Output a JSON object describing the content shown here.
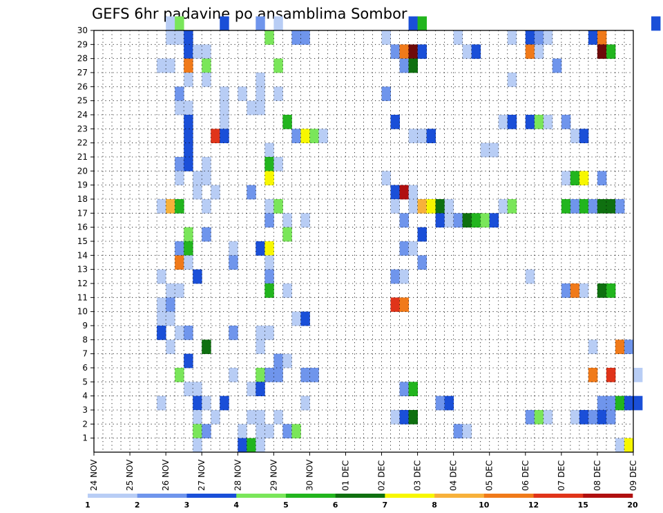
{
  "chart_data": {
    "type": "heatmap",
    "title": "GEFS 6hr padavine po ansamblima Sombor",
    "xlabel": "",
    "ylabel": "",
    "x_tick_labels": [
      "24 NOV",
      "25 NOV",
      "26 NOV",
      "27 NOV",
      "28 NOV",
      "29 NOV",
      "30 NOV",
      "01 DEC",
      "02 DEC",
      "03 DEC",
      "04 DEC",
      "05 DEC",
      "06 DEC",
      "07 DEC",
      "08 DEC",
      "09 DEC"
    ],
    "x_steps_per_day": 4,
    "y_tick_labels": [
      "1",
      "2",
      "3",
      "4",
      "5",
      "6",
      "7",
      "8",
      "9",
      "10",
      "11",
      "12",
      "13",
      "14",
      "15",
      "16",
      "17",
      "18",
      "19",
      "20",
      "21",
      "22",
      "23",
      "24",
      "25",
      "26",
      "27",
      "28",
      "29",
      "30"
    ],
    "ylim": [
      0,
      30
    ],
    "grid": true,
    "colorbar": {
      "tick_labels": [
        "1",
        "2",
        "3",
        "4",
        "5",
        "6",
        "7",
        "8",
        "10",
        "12",
        "15",
        "20"
      ],
      "boundaries": [
        1,
        2,
        3,
        4,
        5,
        6,
        7,
        8,
        10,
        12,
        15,
        20
      ],
      "colors": [
        "#b8cdf5",
        "#6f95ec",
        "#1a4fd8",
        "#7ae65a",
        "#22b51e",
        "#0f7010",
        "#f7f700",
        "#f7b13a",
        "#f07a1a",
        "#e0341a",
        "#b01010",
        "#6e0a0a"
      ]
    },
    "cells": [
      [
        8,
        30,
        0
      ],
      [
        9,
        30,
        3
      ],
      [
        14,
        30,
        2
      ],
      [
        18,
        30,
        1
      ],
      [
        20,
        30,
        0
      ],
      [
        35,
        30,
        2
      ],
      [
        36,
        30,
        4
      ],
      [
        62,
        30,
        2
      ],
      [
        8,
        29,
        0
      ],
      [
        9,
        29,
        0
      ],
      [
        10,
        29,
        2
      ],
      [
        19,
        29,
        3
      ],
      [
        22,
        29,
        1
      ],
      [
        23,
        29,
        1
      ],
      [
        32,
        29,
        0
      ],
      [
        40,
        29,
        0
      ],
      [
        46,
        29,
        0
      ],
      [
        48,
        29,
        2
      ],
      [
        49,
        29,
        1
      ],
      [
        50,
        29,
        0
      ],
      [
        55,
        29,
        2
      ],
      [
        56,
        29,
        8
      ],
      [
        10,
        28,
        2
      ],
      [
        11,
        28,
        0
      ],
      [
        12,
        28,
        0
      ],
      [
        33,
        28,
        1
      ],
      [
        34,
        28,
        8
      ],
      [
        35,
        28,
        11
      ],
      [
        36,
        28,
        2
      ],
      [
        41,
        28,
        0
      ],
      [
        42,
        28,
        2
      ],
      [
        48,
        28,
        8
      ],
      [
        49,
        28,
        0
      ],
      [
        56,
        28,
        11
      ],
      [
        57,
        28,
        4
      ],
      [
        7,
        27,
        0
      ],
      [
        8,
        27,
        0
      ],
      [
        10,
        27,
        8
      ],
      [
        12,
        27,
        3
      ],
      [
        20,
        27,
        3
      ],
      [
        34,
        27,
        1
      ],
      [
        35,
        27,
        5
      ],
      [
        51,
        27,
        1
      ],
      [
        10,
        26,
        0
      ],
      [
        12,
        26,
        0
      ],
      [
        18,
        26,
        0
      ],
      [
        46,
        26,
        0
      ],
      [
        9,
        25,
        1
      ],
      [
        14,
        25,
        0
      ],
      [
        16,
        25,
        0
      ],
      [
        18,
        25,
        0
      ],
      [
        20,
        25,
        0
      ],
      [
        32,
        25,
        1
      ],
      [
        9,
        24,
        0
      ],
      [
        10,
        24,
        0
      ],
      [
        14,
        24,
        0
      ],
      [
        17,
        24,
        0
      ],
      [
        18,
        24,
        0
      ],
      [
        10,
        23,
        2
      ],
      [
        14,
        23,
        0
      ],
      [
        21,
        23,
        4
      ],
      [
        33,
        23,
        2
      ],
      [
        45,
        23,
        0
      ],
      [
        46,
        23,
        2
      ],
      [
        48,
        23,
        2
      ],
      [
        49,
        23,
        3
      ],
      [
        50,
        23,
        0
      ],
      [
        52,
        23,
        1
      ],
      [
        10,
        22,
        2
      ],
      [
        13,
        22,
        9
      ],
      [
        14,
        22,
        2
      ],
      [
        22,
        22,
        1
      ],
      [
        23,
        22,
        6
      ],
      [
        24,
        22,
        3
      ],
      [
        25,
        22,
        0
      ],
      [
        35,
        22,
        0
      ],
      [
        36,
        22,
        0
      ],
      [
        37,
        22,
        2
      ],
      [
        53,
        22,
        0
      ],
      [
        54,
        22,
        2
      ],
      [
        10,
        21,
        2
      ],
      [
        19,
        21,
        0
      ],
      [
        43,
        21,
        0
      ],
      [
        44,
        21,
        0
      ],
      [
        9,
        20,
        1
      ],
      [
        10,
        20,
        2
      ],
      [
        12,
        20,
        0
      ],
      [
        19,
        20,
        4
      ],
      [
        20,
        20,
        0
      ],
      [
        9,
        19,
        0
      ],
      [
        11,
        19,
        0
      ],
      [
        12,
        19,
        0
      ],
      [
        19,
        19,
        6
      ],
      [
        32,
        19,
        0
      ],
      [
        52,
        19,
        0
      ],
      [
        53,
        19,
        4
      ],
      [
        54,
        19,
        6
      ],
      [
        56,
        19,
        1
      ],
      [
        11,
        18,
        0
      ],
      [
        13,
        18,
        0
      ],
      [
        17,
        18,
        1
      ],
      [
        33,
        18,
        2
      ],
      [
        34,
        18,
        10
      ],
      [
        35,
        18,
        0
      ],
      [
        7,
        17,
        0
      ],
      [
        8,
        17,
        7
      ],
      [
        9,
        17,
        4
      ],
      [
        12,
        17,
        0
      ],
      [
        19,
        17,
        0
      ],
      [
        20,
        17,
        3
      ],
      [
        33,
        17,
        0
      ],
      [
        35,
        17,
        0
      ],
      [
        36,
        17,
        7
      ],
      [
        37,
        17,
        6
      ],
      [
        38,
        17,
        5
      ],
      [
        39,
        17,
        0
      ],
      [
        45,
        17,
        0
      ],
      [
        46,
        17,
        3
      ],
      [
        52,
        17,
        4
      ],
      [
        53,
        17,
        1
      ],
      [
        54,
        17,
        4
      ],
      [
        55,
        17,
        1
      ],
      [
        56,
        17,
        5
      ],
      [
        57,
        17,
        5
      ],
      [
        58,
        17,
        1
      ],
      [
        19,
        16,
        1
      ],
      [
        21,
        16,
        0
      ],
      [
        23,
        16,
        0
      ],
      [
        34,
        16,
        1
      ],
      [
        38,
        16,
        2
      ],
      [
        39,
        16,
        0
      ],
      [
        40,
        16,
        1
      ],
      [
        41,
        16,
        5
      ],
      [
        42,
        16,
        4
      ],
      [
        43,
        16,
        3
      ],
      [
        44,
        16,
        2
      ],
      [
        10,
        15,
        3
      ],
      [
        12,
        15,
        1
      ],
      [
        21,
        15,
        3
      ],
      [
        36,
        15,
        2
      ],
      [
        9,
        14,
        1
      ],
      [
        10,
        14,
        4
      ],
      [
        15,
        14,
        0
      ],
      [
        18,
        14,
        2
      ],
      [
        19,
        14,
        6
      ],
      [
        34,
        14,
        1
      ],
      [
        35,
        14,
        0
      ],
      [
        9,
        13,
        8
      ],
      [
        10,
        13,
        0
      ],
      [
        15,
        13,
        1
      ],
      [
        19,
        13,
        0
      ],
      [
        36,
        13,
        1
      ],
      [
        7,
        12,
        0
      ],
      [
        11,
        12,
        2
      ],
      [
        19,
        12,
        1
      ],
      [
        33,
        12,
        1
      ],
      [
        34,
        12,
        0
      ],
      [
        48,
        12,
        0
      ],
      [
        8,
        11,
        0
      ],
      [
        9,
        11,
        0
      ],
      [
        19,
        11,
        4
      ],
      [
        21,
        11,
        0
      ],
      [
        52,
        11,
        1
      ],
      [
        53,
        11,
        8
      ],
      [
        54,
        11,
        0
      ],
      [
        56,
        11,
        5
      ],
      [
        57,
        11,
        4
      ],
      [
        7,
        10,
        0
      ],
      [
        8,
        10,
        1
      ],
      [
        33,
        10,
        9
      ],
      [
        34,
        10,
        8
      ],
      [
        7,
        9,
        0
      ],
      [
        8,
        9,
        0
      ],
      [
        22,
        9,
        0
      ],
      [
        23,
        9,
        2
      ],
      [
        7,
        8,
        2
      ],
      [
        9,
        8,
        0
      ],
      [
        10,
        8,
        1
      ],
      [
        15,
        8,
        1
      ],
      [
        18,
        8,
        0
      ],
      [
        19,
        8,
        0
      ],
      [
        8,
        7,
        0
      ],
      [
        12,
        7,
        5
      ],
      [
        18,
        7,
        0
      ],
      [
        55,
        7,
        0
      ],
      [
        58,
        7,
        8
      ],
      [
        59,
        7,
        1
      ],
      [
        10,
        6,
        2
      ],
      [
        20,
        6,
        1
      ],
      [
        21,
        6,
        0
      ],
      [
        9,
        5,
        3
      ],
      [
        15,
        5,
        0
      ],
      [
        18,
        5,
        3
      ],
      [
        19,
        5,
        1
      ],
      [
        20,
        5,
        1
      ],
      [
        23,
        5,
        1
      ],
      [
        24,
        5,
        1
      ],
      [
        55,
        5,
        8
      ],
      [
        57,
        5,
        9
      ],
      [
        60,
        5,
        0
      ],
      [
        10,
        4,
        0
      ],
      [
        11,
        4,
        0
      ],
      [
        17,
        4,
        0
      ],
      [
        18,
        4,
        2
      ],
      [
        34,
        4,
        1
      ],
      [
        35,
        4,
        4
      ],
      [
        7,
        3,
        0
      ],
      [
        11,
        3,
        2
      ],
      [
        12,
        3,
        0
      ],
      [
        14,
        3,
        2
      ],
      [
        23,
        3,
        0
      ],
      [
        38,
        3,
        1
      ],
      [
        39,
        3,
        2
      ],
      [
        56,
        3,
        1
      ],
      [
        57,
        3,
        1
      ],
      [
        58,
        3,
        4
      ],
      [
        59,
        3,
        2
      ],
      [
        60,
        3,
        2
      ],
      [
        11,
        2,
        0
      ],
      [
        13,
        2,
        0
      ],
      [
        17,
        2,
        0
      ],
      [
        18,
        2,
        0
      ],
      [
        20,
        2,
        0
      ],
      [
        33,
        2,
        0
      ],
      [
        34,
        2,
        2
      ],
      [
        35,
        2,
        5
      ],
      [
        48,
        2,
        1
      ],
      [
        49,
        2,
        3
      ],
      [
        50,
        2,
        0
      ],
      [
        53,
        2,
        0
      ],
      [
        54,
        2,
        2
      ],
      [
        55,
        2,
        1
      ],
      [
        56,
        2,
        2
      ],
      [
        57,
        2,
        1
      ],
      [
        11,
        1,
        3
      ],
      [
        12,
        1,
        1
      ],
      [
        16,
        1,
        0
      ],
      [
        18,
        1,
        0
      ],
      [
        19,
        1,
        0
      ],
      [
        21,
        1,
        1
      ],
      [
        22,
        1,
        3
      ],
      [
        40,
        1,
        1
      ],
      [
        41,
        1,
        0
      ],
      [
        11,
        0,
        0
      ],
      [
        16,
        0,
        2
      ],
      [
        17,
        0,
        4
      ],
      [
        18,
        0,
        0
      ],
      [
        58,
        0,
        0
      ],
      [
        59,
        0,
        6
      ]
    ]
  }
}
